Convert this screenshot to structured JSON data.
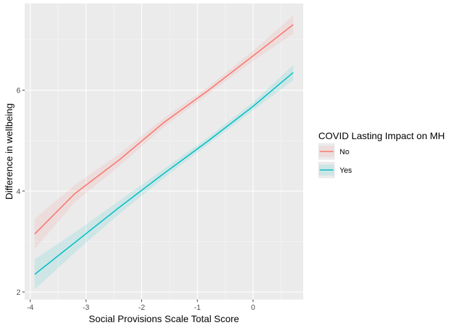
{
  "chart_data": {
    "type": "line",
    "title": "",
    "xlabel": "Social Provisions Scale Total Score",
    "ylabel": "Difference in wellbeing",
    "xlim": [
      -4.1,
      0.9
    ],
    "ylim": [
      1.85,
      7.72
    ],
    "x_ticks": [
      -4,
      -3,
      -2,
      -1,
      0
    ],
    "x_tick_labels": [
      "-4",
      "-3",
      "-2",
      "-1",
      "0"
    ],
    "y_ticks": [
      2,
      4,
      6
    ],
    "y_tick_labels": [
      "2",
      "4",
      "6"
    ],
    "grid": true,
    "background": "#ebebeb",
    "legend": {
      "title": "COVID Lasting Impact on MH",
      "position": "right"
    },
    "series": [
      {
        "name": "No",
        "color": "#F8766D",
        "x": [
          -3.92,
          -3.2,
          -2.4,
          -1.6,
          -0.8,
          0,
          0.72
        ],
        "y": [
          3.15,
          3.95,
          4.62,
          5.36,
          6.0,
          6.68,
          7.3
        ],
        "ymin": [
          2.85,
          3.78,
          4.5,
          5.27,
          5.93,
          6.58,
          7.12
        ],
        "ymax": [
          3.45,
          4.12,
          4.74,
          5.45,
          6.07,
          6.78,
          7.48
        ]
      },
      {
        "name": "Yes",
        "color": "#00BFC4",
        "x": [
          -3.92,
          -3.2,
          -2.4,
          -1.6,
          -0.8,
          0,
          0.72
        ],
        "y": [
          2.35,
          2.98,
          3.68,
          4.35,
          5.0,
          5.68,
          6.35
        ],
        "ymin": [
          2.05,
          2.78,
          3.55,
          4.26,
          4.93,
          5.6,
          6.2
        ],
        "ymax": [
          2.65,
          3.18,
          3.81,
          4.44,
          5.07,
          5.76,
          6.5
        ]
      }
    ]
  }
}
